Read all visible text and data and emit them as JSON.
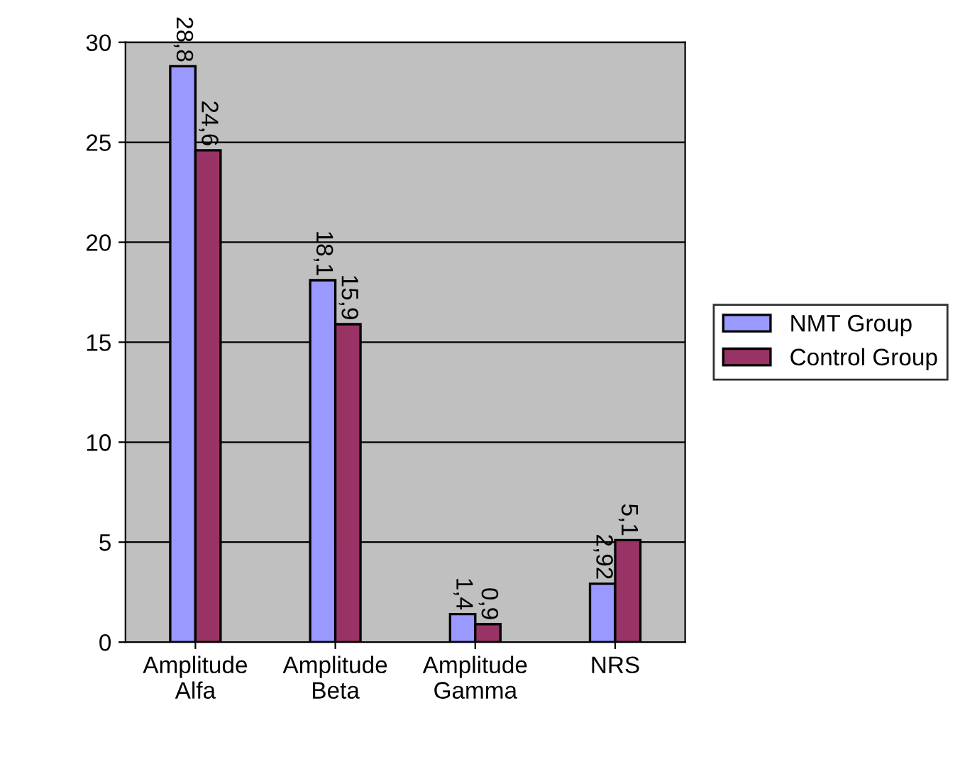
{
  "chart_data": {
    "type": "bar",
    "categories": [
      "Amplitude\nAlfa",
      "Amplitude\nBeta",
      "Amplitude\nGamma",
      "NRS"
    ],
    "series": [
      {
        "name": "NMT Group",
        "color": "#9999ff",
        "values": [
          28.8,
          18.1,
          1.4,
          2.92
        ],
        "value_labels": [
          "28,8",
          "18,1",
          "1,4",
          "2,92"
        ]
      },
      {
        "name": "Control Group",
        "color": "#993366",
        "values": [
          24.6,
          15.9,
          0.9,
          5.1
        ],
        "value_labels": [
          "24,6",
          "15,9",
          "0,9",
          "5,1"
        ]
      }
    ],
    "ylim": [
      0,
      30
    ],
    "yticks": [
      0,
      5,
      10,
      15,
      20,
      25,
      30
    ],
    "grid": "y",
    "legend": "right"
  }
}
